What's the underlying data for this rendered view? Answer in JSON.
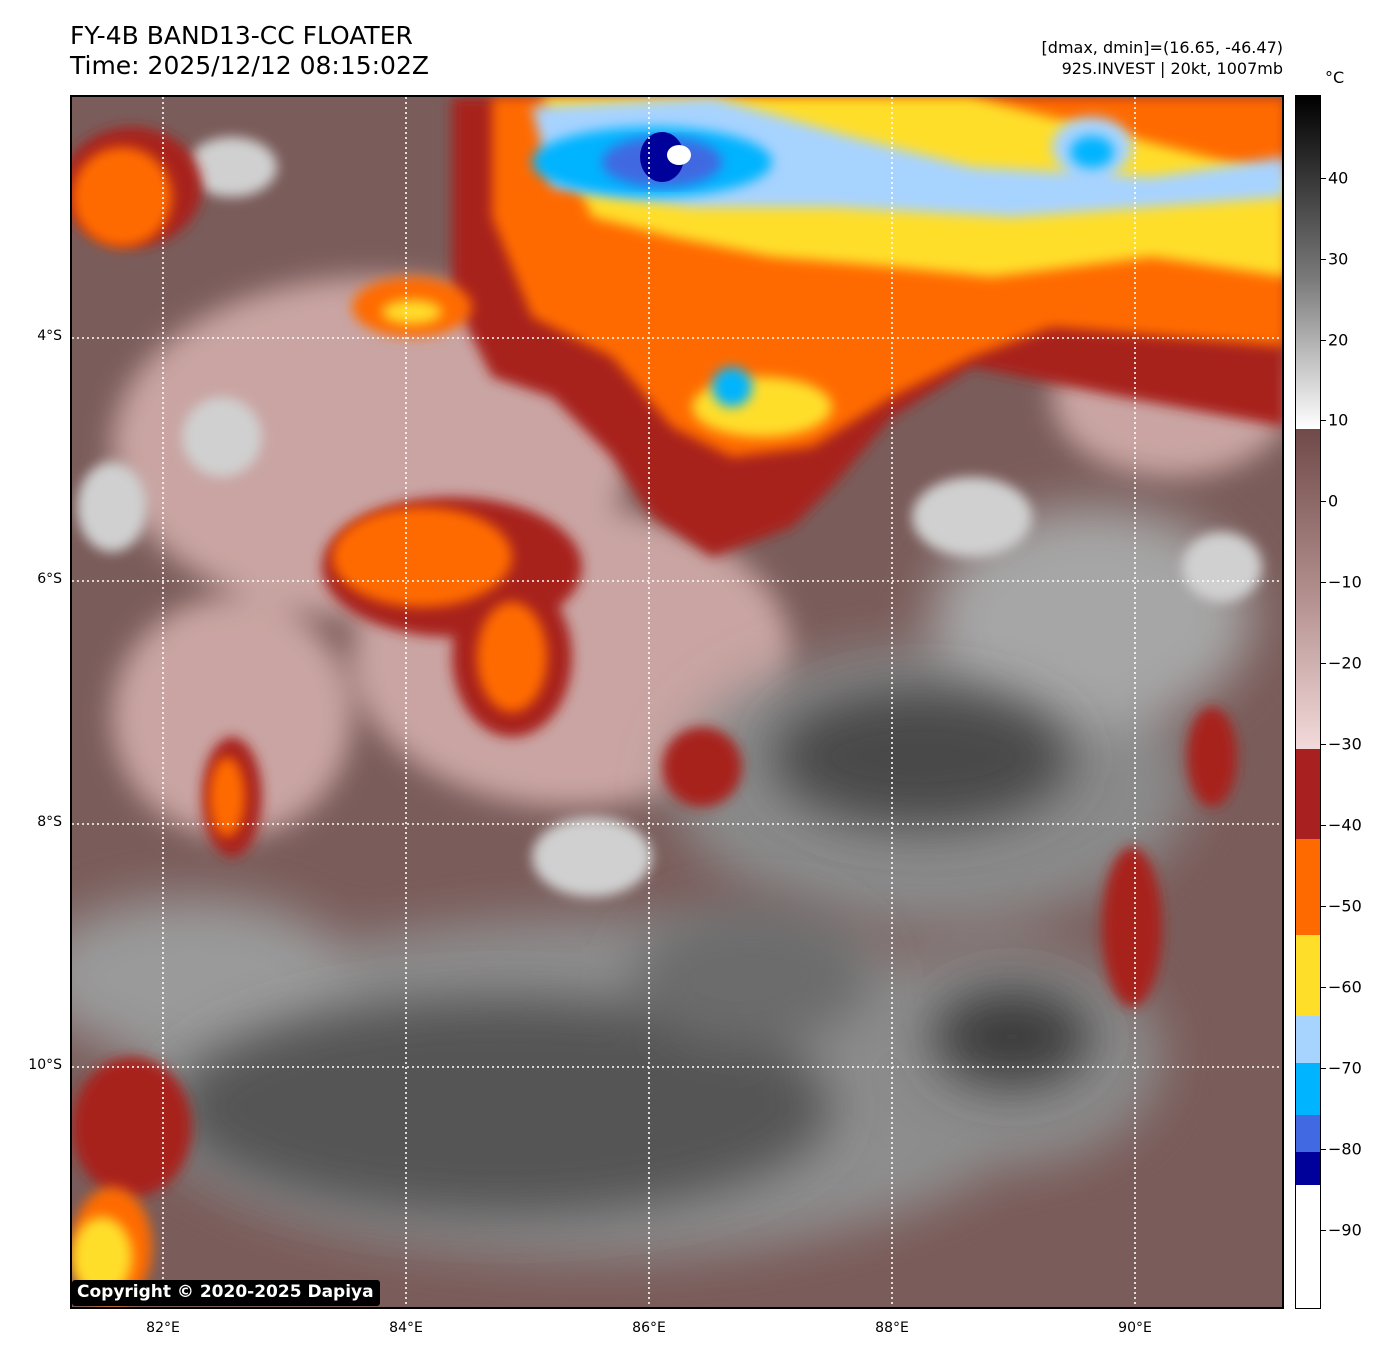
{
  "header": {
    "title_line1": "FY-4B BAND13-CC FLOATER",
    "title_line2": "Time: 2025/12/12 08:15:02Z",
    "range_text": "[dmax, dmin]=(16.65, -46.47)",
    "storm_text": "92S.INVEST | 20kt, 1007mb"
  },
  "map": {
    "lat_labels": [
      "4°S",
      "6°S",
      "8°S",
      "10°S"
    ],
    "lon_labels": [
      "82°E",
      "84°E",
      "86°E",
      "88°E",
      "90°E"
    ],
    "copyright": "Copyright © 2020-2025 Dapiya"
  },
  "colorbar": {
    "unit": "°C",
    "ticks": [
      "40",
      "30",
      "20",
      "10",
      "0",
      "−10",
      "−20",
      "−30",
      "−40",
      "−50",
      "−60",
      "−70",
      "−80",
      "−90"
    ],
    "colors": {
      "warm_dark": "#000000",
      "warm_mid": "#6e6e6e",
      "warm_light": "#ffffff",
      "brown_dark": "#6f4a49",
      "brown_light": "#f3dada",
      "dark_red": "#a8201f",
      "orange": "#ff6a00",
      "yellow": "#ffde2a",
      "light_blue": "#a7d3ff",
      "sky_blue": "#00b4ff",
      "royal_blue": "#4169e1",
      "navy": "#00009a",
      "white": "#ffffff"
    }
  }
}
